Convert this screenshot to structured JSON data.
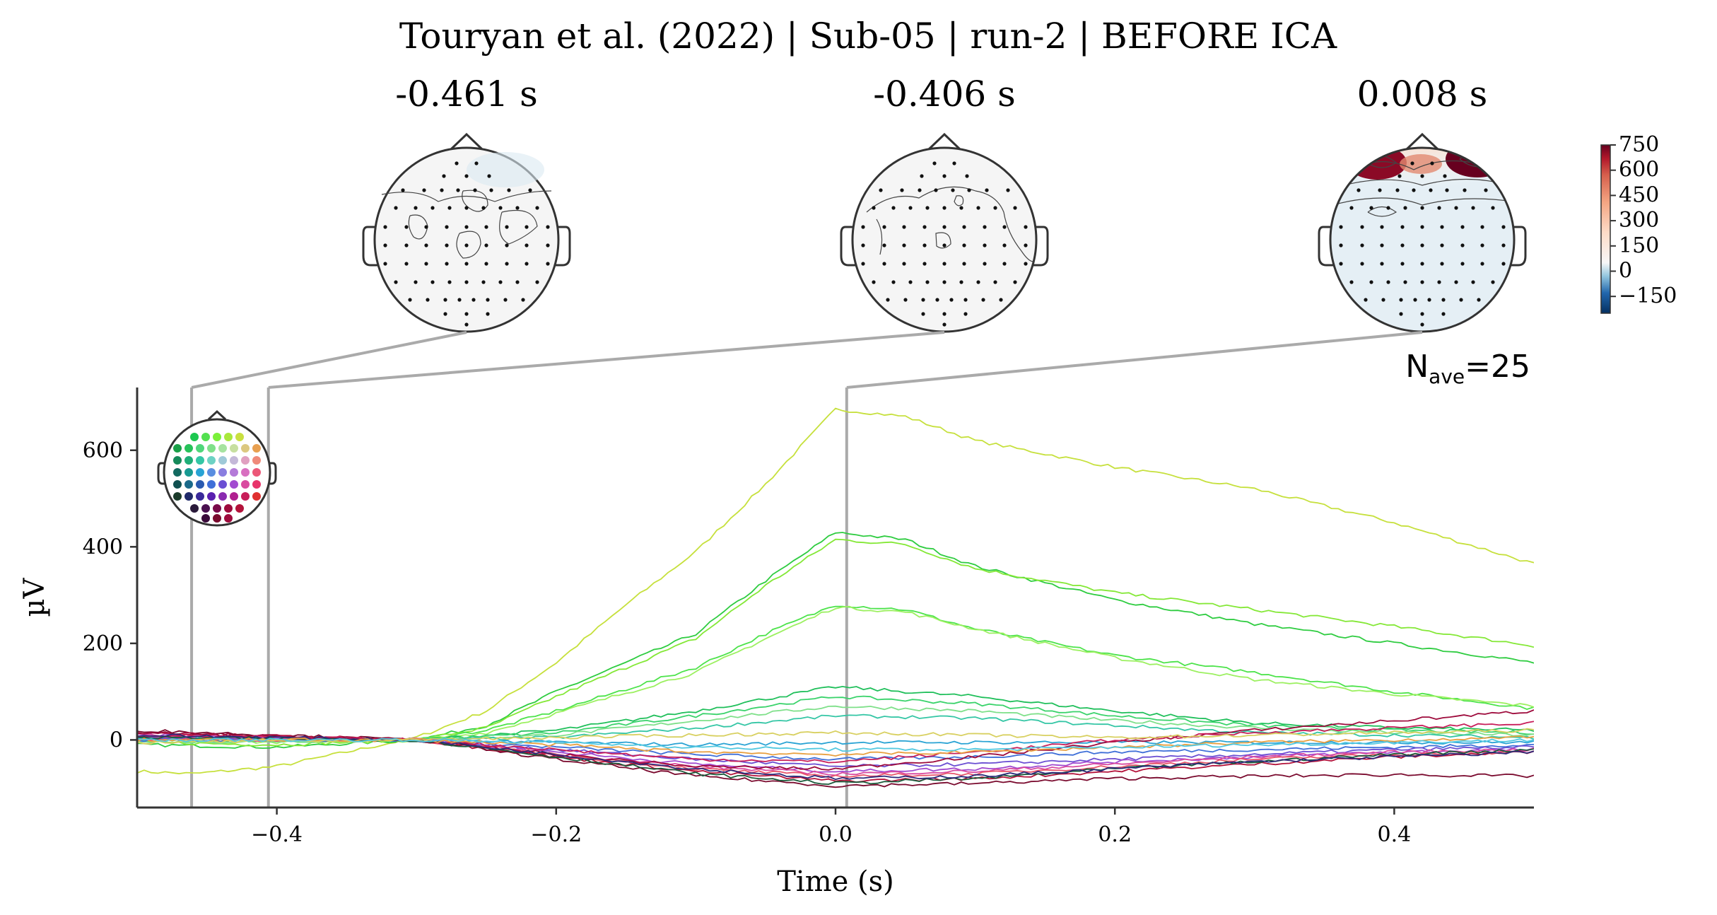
{
  "title": "Touryan et al. (2022) | Sub-05 | run-2 | BEFORE ICA",
  "topomaps": [
    {
      "label": "-0.461 s",
      "time": -0.461,
      "pattern": "flat"
    },
    {
      "label": "-0.406 s",
      "time": -0.406,
      "pattern": "flat"
    },
    {
      "label": "0.008 s",
      "time": 0.008,
      "pattern": "frontal-positive"
    }
  ],
  "colorbar": {
    "ticks": [
      "750",
      "600",
      "450",
      "300",
      "150",
      "0",
      "−150"
    ],
    "range": [
      -250,
      750
    ],
    "colormap": "RdBu_r"
  },
  "nave_label": "N",
  "nave_sub": "ave",
  "nave_value": "=25",
  "chart_data": {
    "type": "line",
    "title": "Touryan et al. (2022) | Sub-05 | run-2 | BEFORE ICA",
    "xlabel": "Time (s)",
    "ylabel": "µV",
    "xlim": [
      -0.5,
      0.5
    ],
    "ylim": [
      -140,
      730
    ],
    "xticks": [
      -0.4,
      -0.2,
      0.0,
      0.2,
      0.4
    ],
    "xtick_labels": [
      "−0.4",
      "−0.2",
      "0.0",
      "0.2",
      "0.4"
    ],
    "yticks": [
      0,
      200,
      400,
      600
    ],
    "ytick_labels": [
      "0",
      "200",
      "400",
      "600"
    ],
    "vlines": [
      -0.461,
      -0.406,
      0.008
    ],
    "series": [
      {
        "color": "#c6e03c",
        "values": [
          [
            -0.5,
            -65
          ],
          [
            -0.46,
            -70
          ],
          [
            -0.4,
            -55
          ],
          [
            -0.35,
            -25
          ],
          [
            -0.3,
            5
          ],
          [
            -0.25,
            60
          ],
          [
            -0.2,
            160
          ],
          [
            -0.15,
            280
          ],
          [
            -0.1,
            390
          ],
          [
            -0.05,
            530
          ],
          [
            0.0,
            685
          ],
          [
            0.05,
            670
          ],
          [
            0.1,
            620
          ],
          [
            0.2,
            565
          ],
          [
            0.3,
            520
          ],
          [
            0.4,
            450
          ],
          [
            0.5,
            365
          ]
        ]
      },
      {
        "color": "#2ecc40",
        "values": [
          [
            -0.5,
            -10
          ],
          [
            -0.4,
            -15
          ],
          [
            -0.3,
            0
          ],
          [
            -0.25,
            30
          ],
          [
            -0.2,
            100
          ],
          [
            -0.1,
            220
          ],
          [
            -0.05,
            330
          ],
          [
            0.0,
            430
          ],
          [
            0.05,
            415
          ],
          [
            0.1,
            360
          ],
          [
            0.2,
            290
          ],
          [
            0.3,
            240
          ],
          [
            0.4,
            200
          ],
          [
            0.5,
            160
          ]
        ]
      },
      {
        "color": "#84e836",
        "values": [
          [
            -0.5,
            -5
          ],
          [
            -0.4,
            -10
          ],
          [
            -0.3,
            0
          ],
          [
            -0.25,
            25
          ],
          [
            -0.2,
            90
          ],
          [
            -0.1,
            210
          ],
          [
            -0.05,
            320
          ],
          [
            0.0,
            415
          ],
          [
            0.05,
            405
          ],
          [
            0.1,
            355
          ],
          [
            0.2,
            305
          ],
          [
            0.3,
            270
          ],
          [
            0.4,
            235
          ],
          [
            0.5,
            195
          ]
        ]
      },
      {
        "color": "#4ce34a",
        "values": [
          [
            -0.5,
            5
          ],
          [
            -0.4,
            0
          ],
          [
            -0.3,
            0
          ],
          [
            -0.25,
            20
          ],
          [
            -0.2,
            60
          ],
          [
            -0.1,
            150
          ],
          [
            -0.05,
            220
          ],
          [
            0.0,
            280
          ],
          [
            0.05,
            270
          ],
          [
            0.1,
            230
          ],
          [
            0.2,
            175
          ],
          [
            0.3,
            140
          ],
          [
            0.4,
            100
          ],
          [
            0.5,
            65
          ]
        ]
      },
      {
        "color": "#9cf060",
        "values": [
          [
            -0.5,
            0
          ],
          [
            -0.4,
            -5
          ],
          [
            -0.3,
            0
          ],
          [
            -0.25,
            15
          ],
          [
            -0.2,
            55
          ],
          [
            -0.1,
            140
          ],
          [
            -0.05,
            210
          ],
          [
            0.0,
            275
          ],
          [
            0.05,
            265
          ],
          [
            0.1,
            230
          ],
          [
            0.2,
            170
          ],
          [
            0.3,
            125
          ],
          [
            0.4,
            95
          ],
          [
            0.5,
            70
          ]
        ]
      },
      {
        "color": "#1fbf5a",
        "values": [
          [
            -0.5,
            5
          ],
          [
            -0.3,
            0
          ],
          [
            -0.2,
            20
          ],
          [
            -0.1,
            60
          ],
          [
            0.0,
            110
          ],
          [
            0.1,
            90
          ],
          [
            0.2,
            60
          ],
          [
            0.3,
            35
          ],
          [
            0.4,
            25
          ],
          [
            0.5,
            20
          ]
        ]
      },
      {
        "color": "#3ad36b",
        "values": [
          [
            -0.5,
            0
          ],
          [
            -0.3,
            0
          ],
          [
            -0.2,
            15
          ],
          [
            -0.1,
            50
          ],
          [
            0.0,
            90
          ],
          [
            0.1,
            75
          ],
          [
            0.2,
            50
          ],
          [
            0.3,
            30
          ],
          [
            0.4,
            20
          ],
          [
            0.5,
            15
          ]
        ]
      },
      {
        "color": "#7fe08a",
        "values": [
          [
            -0.5,
            -5
          ],
          [
            -0.3,
            0
          ],
          [
            -0.2,
            10
          ],
          [
            -0.1,
            40
          ],
          [
            0.0,
            70
          ],
          [
            0.1,
            60
          ],
          [
            0.2,
            40
          ],
          [
            0.3,
            25
          ],
          [
            0.4,
            15
          ],
          [
            0.5,
            10
          ]
        ]
      },
      {
        "color": "#34c6a5",
        "values": [
          [
            -0.5,
            0
          ],
          [
            -0.3,
            0
          ],
          [
            -0.2,
            5
          ],
          [
            -0.1,
            25
          ],
          [
            0.0,
            50
          ],
          [
            0.1,
            45
          ],
          [
            0.2,
            30
          ],
          [
            0.3,
            15
          ],
          [
            0.4,
            10
          ],
          [
            0.5,
            5
          ]
        ]
      },
      {
        "color": "#29a3d4",
        "values": [
          [
            -0.5,
            5
          ],
          [
            -0.3,
            0
          ],
          [
            -0.2,
            -5
          ],
          [
            -0.1,
            -10
          ],
          [
            0.0,
            -5
          ],
          [
            0.1,
            -5
          ],
          [
            0.2,
            -5
          ],
          [
            0.3,
            -5
          ],
          [
            0.4,
            -5
          ],
          [
            0.5,
            -5
          ]
        ]
      },
      {
        "color": "#3f6fd8",
        "values": [
          [
            -0.5,
            0
          ],
          [
            -0.3,
            0
          ],
          [
            -0.2,
            -15
          ],
          [
            -0.1,
            -30
          ],
          [
            0.0,
            -40
          ],
          [
            0.1,
            -35
          ],
          [
            0.2,
            -25
          ],
          [
            0.3,
            -20
          ],
          [
            0.4,
            -15
          ],
          [
            0.5,
            -10
          ]
        ]
      },
      {
        "color": "#6b4fd3",
        "values": [
          [
            -0.5,
            5
          ],
          [
            -0.3,
            0
          ],
          [
            -0.2,
            -20
          ],
          [
            -0.1,
            -40
          ],
          [
            0.0,
            -55
          ],
          [
            0.1,
            -50
          ],
          [
            0.2,
            -40
          ],
          [
            0.3,
            -30
          ],
          [
            0.4,
            -20
          ],
          [
            0.5,
            -15
          ]
        ]
      },
      {
        "color": "#a24bd0",
        "values": [
          [
            -0.5,
            10
          ],
          [
            -0.3,
            0
          ],
          [
            -0.2,
            -25
          ],
          [
            -0.1,
            -50
          ],
          [
            0.0,
            -65
          ],
          [
            0.1,
            -60
          ],
          [
            0.2,
            -45
          ],
          [
            0.3,
            -35
          ],
          [
            0.4,
            -25
          ],
          [
            0.5,
            -20
          ]
        ]
      },
      {
        "color": "#d94aa0",
        "values": [
          [
            -0.5,
            10
          ],
          [
            -0.3,
            0
          ],
          [
            -0.2,
            -30
          ],
          [
            -0.1,
            -55
          ],
          [
            0.0,
            -70
          ],
          [
            0.1,
            -65
          ],
          [
            0.2,
            -50
          ],
          [
            0.3,
            -35
          ],
          [
            0.4,
            -25
          ],
          [
            0.5,
            -20
          ]
        ]
      },
      {
        "color": "#e8546a",
        "values": [
          [
            -0.5,
            0
          ],
          [
            -0.3,
            0
          ],
          [
            -0.2,
            -30
          ],
          [
            -0.1,
            -60
          ],
          [
            0.0,
            -75
          ],
          [
            0.1,
            -70
          ],
          [
            0.2,
            -55
          ],
          [
            0.3,
            -40
          ],
          [
            0.4,
            -30
          ],
          [
            0.5,
            -25
          ]
        ]
      },
      {
        "color": "#b3123a",
        "values": [
          [
            -0.5,
            15
          ],
          [
            -0.3,
            0
          ],
          [
            -0.2,
            -35
          ],
          [
            -0.1,
            -65
          ],
          [
            0.0,
            -85
          ],
          [
            0.1,
            -80
          ],
          [
            0.2,
            -65
          ],
          [
            0.3,
            -50
          ],
          [
            0.4,
            -35
          ],
          [
            0.5,
            -25
          ]
        ]
      },
      {
        "color": "#7a0a2e",
        "values": [
          [
            -0.5,
            20
          ],
          [
            -0.3,
            0
          ],
          [
            -0.2,
            -40
          ],
          [
            -0.1,
            -75
          ],
          [
            0.0,
            -95
          ],
          [
            0.1,
            -90
          ],
          [
            0.2,
            -80
          ],
          [
            0.3,
            -75
          ],
          [
            0.4,
            -72
          ],
          [
            0.5,
            -75
          ]
        ]
      },
      {
        "color": "#9e0b3c",
        "values": [
          [
            -0.5,
            15
          ],
          [
            -0.3,
            0
          ],
          [
            -0.2,
            -30
          ],
          [
            -0.1,
            -55
          ],
          [
            0.0,
            -60
          ],
          [
            0.1,
            -35
          ],
          [
            0.2,
            -5
          ],
          [
            0.3,
            20
          ],
          [
            0.4,
            40
          ],
          [
            0.5,
            60
          ]
        ]
      },
      {
        "color": "#c81e5a",
        "values": [
          [
            -0.5,
            10
          ],
          [
            -0.3,
            0
          ],
          [
            -0.2,
            -20
          ],
          [
            -0.1,
            -40
          ],
          [
            0.0,
            -45
          ],
          [
            0.1,
            -25
          ],
          [
            0.2,
            0
          ],
          [
            0.3,
            15
          ],
          [
            0.4,
            25
          ],
          [
            0.5,
            35
          ]
        ]
      },
      {
        "color": "#1a5a3a",
        "values": [
          [
            -0.5,
            5
          ],
          [
            -0.3,
            0
          ],
          [
            -0.2,
            -35
          ],
          [
            -0.1,
            -70
          ],
          [
            0.0,
            -90
          ],
          [
            0.1,
            -80
          ],
          [
            0.2,
            -60
          ],
          [
            0.3,
            -45
          ],
          [
            0.4,
            -30
          ],
          [
            0.5,
            -20
          ]
        ]
      },
      {
        "color": "#2d2a7a",
        "values": [
          [
            -0.5,
            10
          ],
          [
            -0.3,
            0
          ],
          [
            -0.2,
            -30
          ],
          [
            -0.1,
            -60
          ],
          [
            0.0,
            -80
          ],
          [
            0.1,
            -75
          ],
          [
            0.2,
            -60
          ],
          [
            0.3,
            -45
          ],
          [
            0.4,
            -35
          ],
          [
            0.5,
            -25
          ]
        ]
      },
      {
        "color": "#e8a040",
        "values": [
          [
            -0.5,
            0
          ],
          [
            -0.3,
            0
          ],
          [
            -0.2,
            -10
          ],
          [
            -0.1,
            -25
          ],
          [
            0.0,
            -30
          ],
          [
            0.1,
            -25
          ],
          [
            0.2,
            -15
          ],
          [
            0.3,
            -5
          ],
          [
            0.4,
            0
          ],
          [
            0.5,
            5
          ]
        ]
      },
      {
        "color": "#d8d060",
        "values": [
          [
            -0.5,
            -5
          ],
          [
            -0.3,
            0
          ],
          [
            -0.2,
            5
          ],
          [
            -0.1,
            10
          ],
          [
            0.0,
            15
          ],
          [
            0.1,
            10
          ],
          [
            0.2,
            5
          ],
          [
            0.3,
            10
          ],
          [
            0.4,
            15
          ],
          [
            0.5,
            20
          ]
        ]
      },
      {
        "color": "#52c8e0",
        "values": [
          [
            -0.5,
            0
          ],
          [
            -0.3,
            0
          ],
          [
            -0.2,
            -5
          ],
          [
            -0.1,
            -15
          ],
          [
            0.0,
            -20
          ],
          [
            0.1,
            -20
          ],
          [
            0.2,
            -15
          ],
          [
            0.3,
            -10
          ],
          [
            0.4,
            -5
          ],
          [
            0.5,
            0
          ]
        ]
      }
    ]
  }
}
